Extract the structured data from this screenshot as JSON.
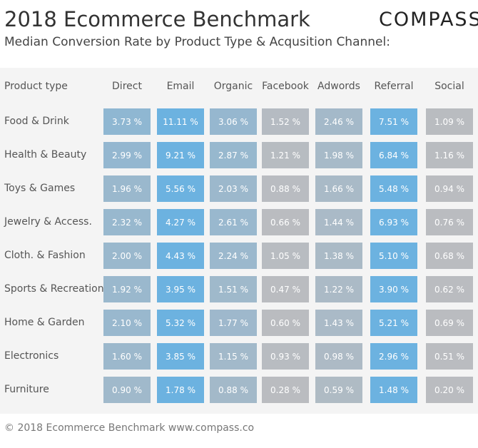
{
  "header": {
    "title": "2018 Ecommerce Benchmark",
    "subtitle": "Median Conversion Rate by Product Type & Acqusition Channel:",
    "logo": "COMPASS"
  },
  "table": {
    "corner": "Product type",
    "columns": [
      "Direct",
      "Email",
      "Organic",
      "Facebook",
      "Adwords",
      "Referral",
      "Social"
    ],
    "rows": [
      {
        "label": "Food & Drink",
        "values": [
          3.73,
          11.11,
          3.06,
          1.52,
          2.46,
          7.51,
          1.09
        ],
        "value_labels": [
          "3.73 %",
          "11.11 %",
          "3.06 %",
          "1.52 %",
          "2.46 %",
          "7.51 %",
          "1.09 %"
        ]
      },
      {
        "label": "Health & Beauty",
        "values": [
          2.99,
          9.21,
          2.87,
          1.21,
          1.98,
          6.84,
          1.16
        ],
        "value_labels": [
          "2.99 %",
          "9.21 %",
          "2.87 %",
          "1.21 %",
          "1.98 %",
          "6.84 %",
          "1.16 %"
        ]
      },
      {
        "label": "Toys & Games",
        "values": [
          1.96,
          5.56,
          2.03,
          0.88,
          1.66,
          5.48,
          0.94
        ],
        "value_labels": [
          "1.96 %",
          "5.56 %",
          "2.03 %",
          "0.88 %",
          "1.66 %",
          "5.48 %",
          "0.94 %"
        ]
      },
      {
        "label": "Jewelry & Access.",
        "values": [
          2.32,
          4.27,
          2.61,
          0.66,
          1.44,
          6.93,
          0.76
        ],
        "value_labels": [
          "2.32 %",
          "4.27 %",
          "2.61 %",
          "0.66 %",
          "1.44 %",
          "6.93 %",
          "0.76 %"
        ]
      },
      {
        "label": "Cloth. & Fashion",
        "values": [
          2.0,
          4.43,
          2.24,
          1.05,
          1.38,
          5.1,
          0.68
        ],
        "value_labels": [
          "2.00 %",
          "4.43 %",
          "2.24 %",
          "1.05 %",
          "1.38 %",
          "5.10 %",
          "0.68 %"
        ]
      },
      {
        "label": "Sports & Recreation",
        "values": [
          1.92,
          3.95,
          1.51,
          0.47,
          1.22,
          3.9,
          0.62
        ],
        "value_labels": [
          "1.92 %",
          "3.95 %",
          "1.51 %",
          "0.47 %",
          "1.22 %",
          "3.90 %",
          "0.62 %"
        ]
      },
      {
        "label": "Home & Garden",
        "values": [
          2.1,
          5.32,
          1.77,
          0.6,
          1.43,
          5.21,
          0.69
        ],
        "value_labels": [
          "2.10 %",
          "5.32 %",
          "1.77 %",
          "0.60 %",
          "1.43 %",
          "5.21 %",
          "0.69 %"
        ]
      },
      {
        "label": "Electronics",
        "values": [
          1.6,
          3.85,
          1.15,
          0.93,
          0.98,
          2.96,
          0.51
        ],
        "value_labels": [
          "1.60 %",
          "3.85 %",
          "1.15 %",
          "0.93 %",
          "0.98 %",
          "2.96 %",
          "0.51 %"
        ]
      },
      {
        "label": "Furniture",
        "values": [
          0.9,
          1.78,
          0.88,
          0.28,
          0.59,
          1.48,
          0.2
        ],
        "value_labels": [
          "0.90 %",
          "1.78 %",
          "0.88 %",
          "0.28 %",
          "0.59 %",
          "1.48 %",
          "0.20 %"
        ]
      }
    ]
  },
  "footer": "© 2018 Ecommerce Benchmark www.compass.co"
}
